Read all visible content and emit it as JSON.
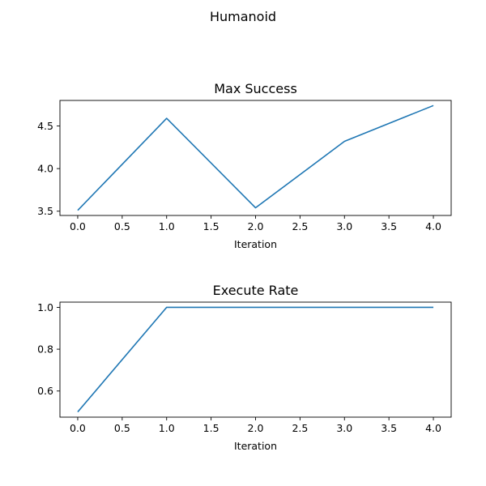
{
  "figure": {
    "title": "Humanoid"
  },
  "chart_data": [
    {
      "type": "line",
      "title": "Max Success",
      "xlabel": "Iteration",
      "ylabel": "",
      "x": [
        0,
        1,
        2,
        3,
        4
      ],
      "series": [
        {
          "values": [
            3.51,
            4.59,
            3.54,
            4.32,
            4.74
          ],
          "color": "#1f77b4"
        }
      ],
      "xlim": [
        -0.2,
        4.2
      ],
      "ylim": [
        3.45,
        4.8
      ],
      "xticks": [
        0.0,
        0.5,
        1.0,
        1.5,
        2.0,
        2.5,
        3.0,
        3.5,
        4.0
      ],
      "xtick_labels": [
        "0.0",
        "0.5",
        "1.0",
        "1.5",
        "2.0",
        "2.5",
        "3.0",
        "3.5",
        "4.0"
      ],
      "yticks": [
        3.5,
        4.0,
        4.5
      ],
      "ytick_labels": [
        "3.5",
        "4.0",
        "4.5"
      ],
      "grid": false
    },
    {
      "type": "line",
      "title": "Execute Rate",
      "xlabel": "Iteration",
      "ylabel": "",
      "x": [
        0,
        1,
        2,
        3,
        4
      ],
      "series": [
        {
          "values": [
            0.5,
            1.0,
            1.0,
            1.0,
            1.0
          ],
          "color": "#1f77b4"
        }
      ],
      "xlim": [
        -0.2,
        4.2
      ],
      "ylim": [
        0.475,
        1.025
      ],
      "xticks": [
        0.0,
        0.5,
        1.0,
        1.5,
        2.0,
        2.5,
        3.0,
        3.5,
        4.0
      ],
      "xtick_labels": [
        "0.0",
        "0.5",
        "1.0",
        "1.5",
        "2.0",
        "2.5",
        "3.0",
        "3.5",
        "4.0"
      ],
      "yticks": [
        0.6,
        0.8,
        1.0
      ],
      "ytick_labels": [
        "0.6",
        "0.8",
        "1.0"
      ],
      "grid": false
    }
  ]
}
